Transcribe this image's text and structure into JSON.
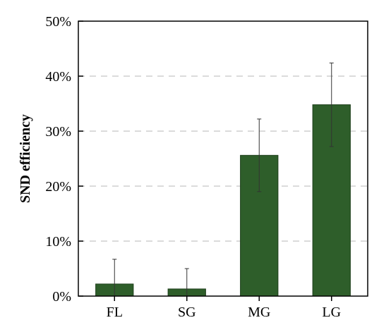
{
  "chart_data": {
    "type": "bar",
    "title": "",
    "xlabel": "",
    "ylabel": "SND efficiency",
    "categories": [
      "FL",
      "SG",
      "MG",
      "LG"
    ],
    "series": [
      {
        "values": [
          0.022,
          0.013,
          0.256,
          0.348
        ],
        "error": [
          0.045,
          0.037,
          0.066,
          0.076
        ],
        "color": "#2e5e2a"
      }
    ],
    "ylim": [
      0,
      0.5
    ],
    "yticks": [
      0,
      0.1,
      0.2,
      0.3,
      0.4,
      0.5
    ],
    "ytick_labels": [
      "0%",
      "10%",
      "20%",
      "30%",
      "40%",
      "50%"
    ],
    "grid": "horizontal dashed",
    "gridline_color": "#cfcfcf",
    "legend": "none"
  }
}
